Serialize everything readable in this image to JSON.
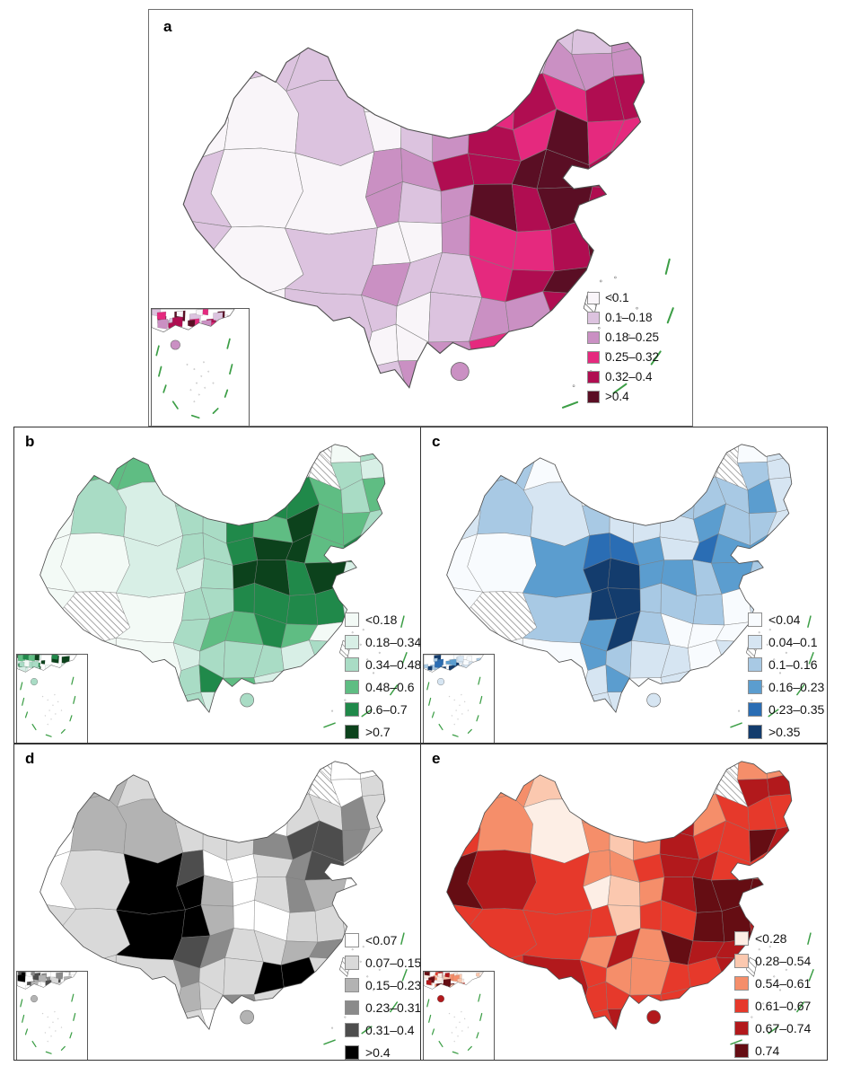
{
  "panels": [
    {
      "id": "a",
      "label": "a",
      "legend_labels": [
        "<0.1",
        "0.1–0.18",
        "0.18–0.25",
        "0.25–0.32",
        "0.32–0.4",
        ">0.4"
      ],
      "palette": [
        "#f9f5f9",
        "#dcc3df",
        "#ca90c3",
        "#e5297e",
        "#b00d51",
        "#5a0e24"
      ]
    },
    {
      "id": "b",
      "label": "b",
      "legend_labels": [
        "<0.18",
        "0.18–0.34",
        "0.34–0.48",
        "0.48–0.6",
        "0.6–0.7",
        ">0.7"
      ],
      "palette": [
        "#f3faf6",
        "#d8efe6",
        "#a9dcc5",
        "#5fbd83",
        "#20894a",
        "#0c421c"
      ]
    },
    {
      "id": "c",
      "label": "c",
      "legend_labels": [
        "<0.04",
        "0.04–0.1",
        "0.1–0.16",
        "0.16–0.23",
        "0.23–0.35",
        ">0.35"
      ],
      "palette": [
        "#f8fbfe",
        "#d6e5f2",
        "#a8c9e4",
        "#5b9dcf",
        "#2a6db4",
        "#133c6d"
      ]
    },
    {
      "id": "d",
      "label": "d",
      "legend_labels": [
        "<0.07",
        "0.07–0.15",
        "0.15–0.23",
        "0.23–0.31",
        "0.31–0.4",
        ">0.4"
      ],
      "palette": [
        "#ffffff",
        "#d9d9d9",
        "#b3b3b3",
        "#8a8a8a",
        "#4d4d4d",
        "#000000"
      ]
    },
    {
      "id": "e",
      "label": "e",
      "legend_labels": [
        "<0.28",
        "0.28–0.54",
        "0.54–0.61",
        "0.61–0.67",
        "0.67–0.74",
        "0.74"
      ],
      "palette": [
        "#fdeee5",
        "#fbc8af",
        "#f58e6a",
        "#e6392b",
        "#b2191c",
        "#650d13"
      ]
    }
  ],
  "map_style": {
    "region_border_color": "#7d7d7d",
    "country_border_color": "#4f4f4f",
    "no_data_pattern": "diagonal-hatch",
    "hatch_color": "#8a8a8a",
    "nine_dash_line_color": "#3c9e46",
    "sea_color": "#ffffff"
  }
}
